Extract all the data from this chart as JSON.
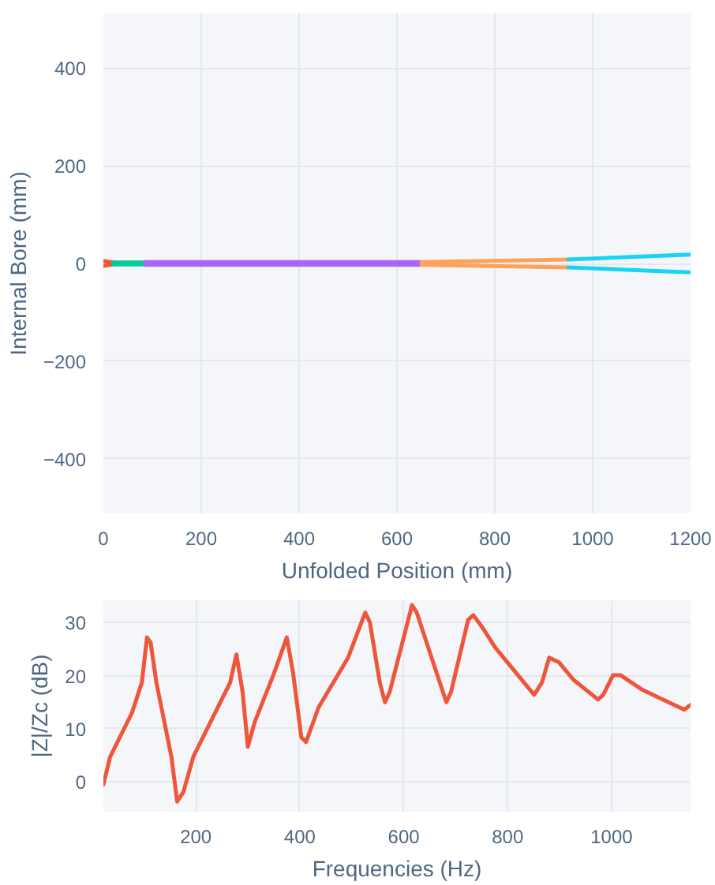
{
  "chart_data": [
    {
      "type": "line",
      "xlabel": "Unfolded Position (mm)",
      "ylabel": "Internal Bore (mm)",
      "xlim": [
        0,
        1200
      ],
      "ylim": [
        -512,
        512
      ],
      "xticks": [
        0,
        200,
        400,
        600,
        800,
        1000,
        1200
      ],
      "yticks": [
        {
          "value": -400,
          "label": "−400"
        },
        {
          "value": -200,
          "label": "−200"
        },
        0,
        200,
        400
      ],
      "grid": true,
      "series": [
        {
          "color": "#ef553b",
          "x": [
            0,
            20
          ],
          "values": [
            5,
            2
          ]
        },
        {
          "color": "#ef553b",
          "x": [
            0,
            20
          ],
          "values": [
            -5,
            -2
          ]
        },
        {
          "color": "#00cc96",
          "x": [
            20,
            85
          ],
          "values": [
            2,
            2
          ]
        },
        {
          "color": "#00cc96",
          "x": [
            20,
            85
          ],
          "values": [
            -2,
            -2
          ]
        },
        {
          "color": "#ab63fa",
          "x": [
            85,
            650
          ],
          "values": [
            3,
            3
          ]
        },
        {
          "color": "#ab63fa",
          "x": [
            85,
            650
          ],
          "values": [
            -3,
            -3
          ]
        },
        {
          "color": "#ffa15a",
          "x": [
            650,
            950
          ],
          "values": [
            3,
            8
          ]
        },
        {
          "color": "#ffa15a",
          "x": [
            650,
            950
          ],
          "values": [
            -3,
            -8
          ]
        },
        {
          "color": "#19d3f3",
          "x": [
            950,
            1200
          ],
          "values": [
            8,
            18
          ]
        },
        {
          "color": "#19d3f3",
          "x": [
            950,
            1200
          ],
          "values": [
            -8,
            -18
          ]
        }
      ]
    },
    {
      "type": "line",
      "xlabel": "Frequencies (Hz)",
      "ylabel": "|Z|/Zc (dB)",
      "xlim": [
        22,
        1152
      ],
      "ylim": [
        -5.6,
        34.2
      ],
      "xticks": [
        200,
        400,
        600,
        800,
        1000
      ],
      "yticks": [
        0,
        10,
        20,
        30
      ],
      "grid": true,
      "series": [
        {
          "color": "#ef553b",
          "x": [
            22,
            35,
            77,
            96,
            106,
            113,
            124,
            153,
            164,
            176,
            195,
            247,
            266,
            278,
            290,
            300,
            313,
            351,
            375,
            387,
            403,
            412,
            436,
            493,
            526,
            535,
            554,
            564,
            573,
            616,
            625,
            663,
            682,
            691,
            724,
            734,
            752,
            776,
            851,
            866,
            880,
            899,
            927,
            974,
            984,
            1003,
            1017,
            1060,
            1140,
            1152
          ],
          "values": [
            -0.5,
            4.7,
            13,
            18.7,
            27.2,
            26.2,
            18.7,
            4.7,
            -3.7,
            -1.9,
            4.7,
            15,
            18.7,
            24,
            16.9,
            6.6,
            11.2,
            20.6,
            27.2,
            20.6,
            8.4,
            7.5,
            14,
            23.4,
            31.9,
            30,
            18.7,
            15,
            16.9,
            33.3,
            31.9,
            20.6,
            15,
            16.9,
            30.5,
            31.4,
            29,
            25.3,
            16.4,
            18.7,
            23.4,
            22.5,
            19.2,
            15.5,
            16.4,
            20.1,
            20.1,
            17.3,
            13.6,
            14.5
          ]
        }
      ]
    }
  ]
}
